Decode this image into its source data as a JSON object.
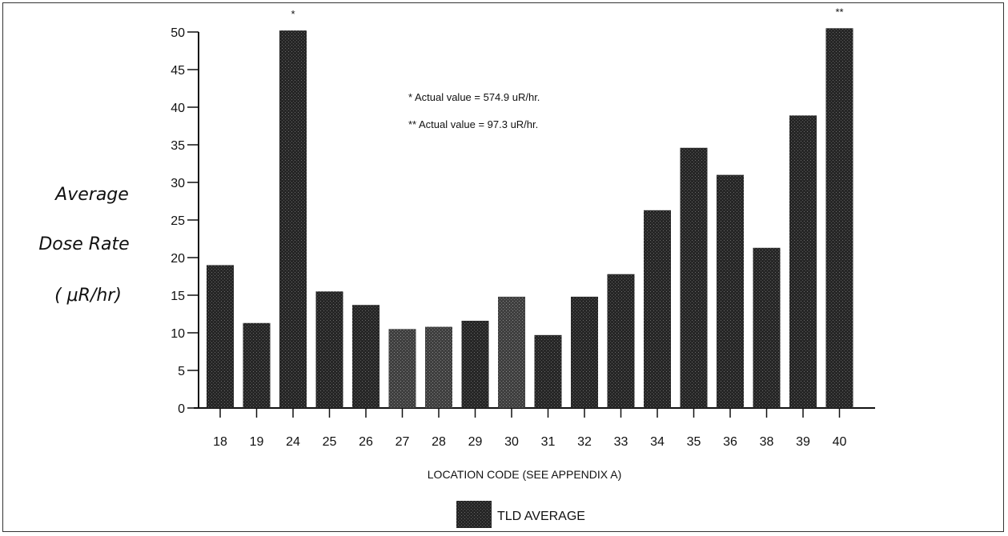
{
  "chart_data": {
    "type": "bar",
    "categories": [
      "18",
      "19",
      "24",
      "25",
      "26",
      "27",
      "28",
      "29",
      "30",
      "31",
      "32",
      "33",
      "34",
      "35",
      "36",
      "38",
      "39",
      "40"
    ],
    "series": [
      {
        "name": "TLD AVERAGE",
        "values": [
          19.0,
          11.3,
          50.2,
          15.5,
          13.7,
          10.5,
          10.8,
          11.6,
          14.8,
          9.7,
          14.8,
          17.8,
          26.3,
          34.6,
          31.0,
          21.3,
          38.9,
          50.5
        ]
      }
    ],
    "ylabel_lines": [
      "Average",
      "Dose Rate",
      "( μR/hr)"
    ],
    "xlabel": "LOCATION CODE (SEE APPENDIX A)",
    "ylim": [
      0,
      50
    ],
    "yticks": [
      "0",
      "5",
      "10",
      "15",
      "20",
      "25",
      "30",
      "35",
      "40",
      "45",
      "50"
    ],
    "bar_markers": {
      "24": "*",
      "40": "**"
    },
    "annotations": [
      "* Actual value = 574.9 uR/hr.",
      "** Actual value = 97.3 uR/hr."
    ],
    "legend": {
      "label": "TLD AVERAGE",
      "position": "bottom-center"
    },
    "colors": {
      "bar_dark": "#262626",
      "bar_light": "#4e4e4e",
      "frame": "#333333"
    }
  }
}
